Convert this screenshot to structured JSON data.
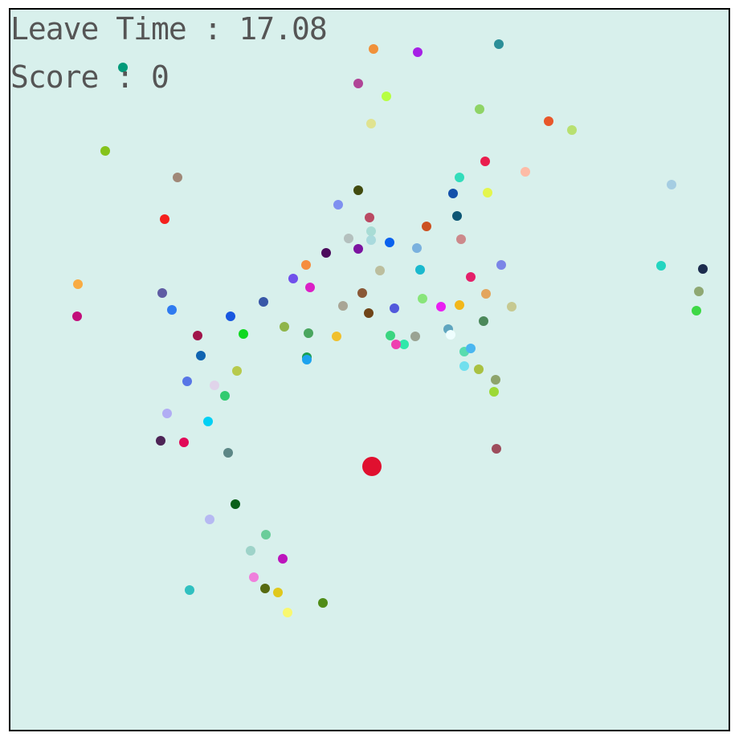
{
  "game": {
    "background_color": "#d8f0ec",
    "hud_text_color": "#555555",
    "time_label": "Leave Time : 17.08",
    "score_label": "Score : 0",
    "player": {
      "color": "#e0102f"
    }
  },
  "dots_colors": [
    "#f0913a",
    "#a620e6",
    "#2b8f98",
    "#009a7a",
    "#b04597",
    "#b7ff42",
    "#8fd466",
    "#e8572a",
    "#b8e070",
    "#e0e390",
    "#85c31b",
    "#a08878",
    "#e91e4d",
    "#fdbba6",
    "#33ddbb",
    "#e4f64d",
    "#1350aa",
    "#414b0f",
    "#a9dadd",
    "#7f90f0",
    "#ba4a63",
    "#0d5675",
    "#cc5121",
    "#f4211d",
    "#b4c0be",
    "#a8dcd5",
    "#0a62ee",
    "#7ab1de",
    "#cc898b",
    "#4b0b5c",
    "#7c13a0",
    "#f58d3f",
    "#bcbe9e",
    "#1ab9ce",
    "#7b85e7",
    "#e4206a",
    "#f8ab42",
    "#5f5ca3",
    "#7050eb",
    "#db20c6",
    "#8a5836",
    "#3857a7",
    "#a9a595",
    "#6f4418",
    "#5259dc",
    "#88e57a",
    "#e920f2",
    "#f2b71a",
    "#e3a55d",
    "#c6c991",
    "#c20f7b",
    "#2f7bf0",
    "#8fb54a",
    "#49a65e",
    "#f0c02e",
    "#1857e0",
    "#a0154a",
    "#10d820",
    "#2fe8aa",
    "#ee40b0",
    "#3ad580",
    "#9aa393",
    "#5fa5bf",
    "#eefefe",
    "#4b885a",
    "#58dcae",
    "#4ab6f0",
    "#0f64b1",
    "#1a9f52",
    "#1da3ee",
    "#5876e6",
    "#e0d4ea",
    "#b7ca4c",
    "#31cb70",
    "#70dfee",
    "#a9c142",
    "#8da46b",
    "#9cd935",
    "#b1adf4",
    "#02d0f4",
    "#4d2456",
    "#e10a58",
    "#5c8786",
    "#9d4d5c",
    "#0a5f1a",
    "#b6b9f2",
    "#6acd9a",
    "#9ed3c9",
    "#bc14bc",
    "#30c0c0",
    "#ef80dc",
    "#566a10",
    "#e0c81c",
    "#f9f86f",
    "#4f8c17",
    "#a5cde2",
    "#23d5c0",
    "#1c2c4e",
    "#8fa873",
    "#3dd846"
  ]
}
